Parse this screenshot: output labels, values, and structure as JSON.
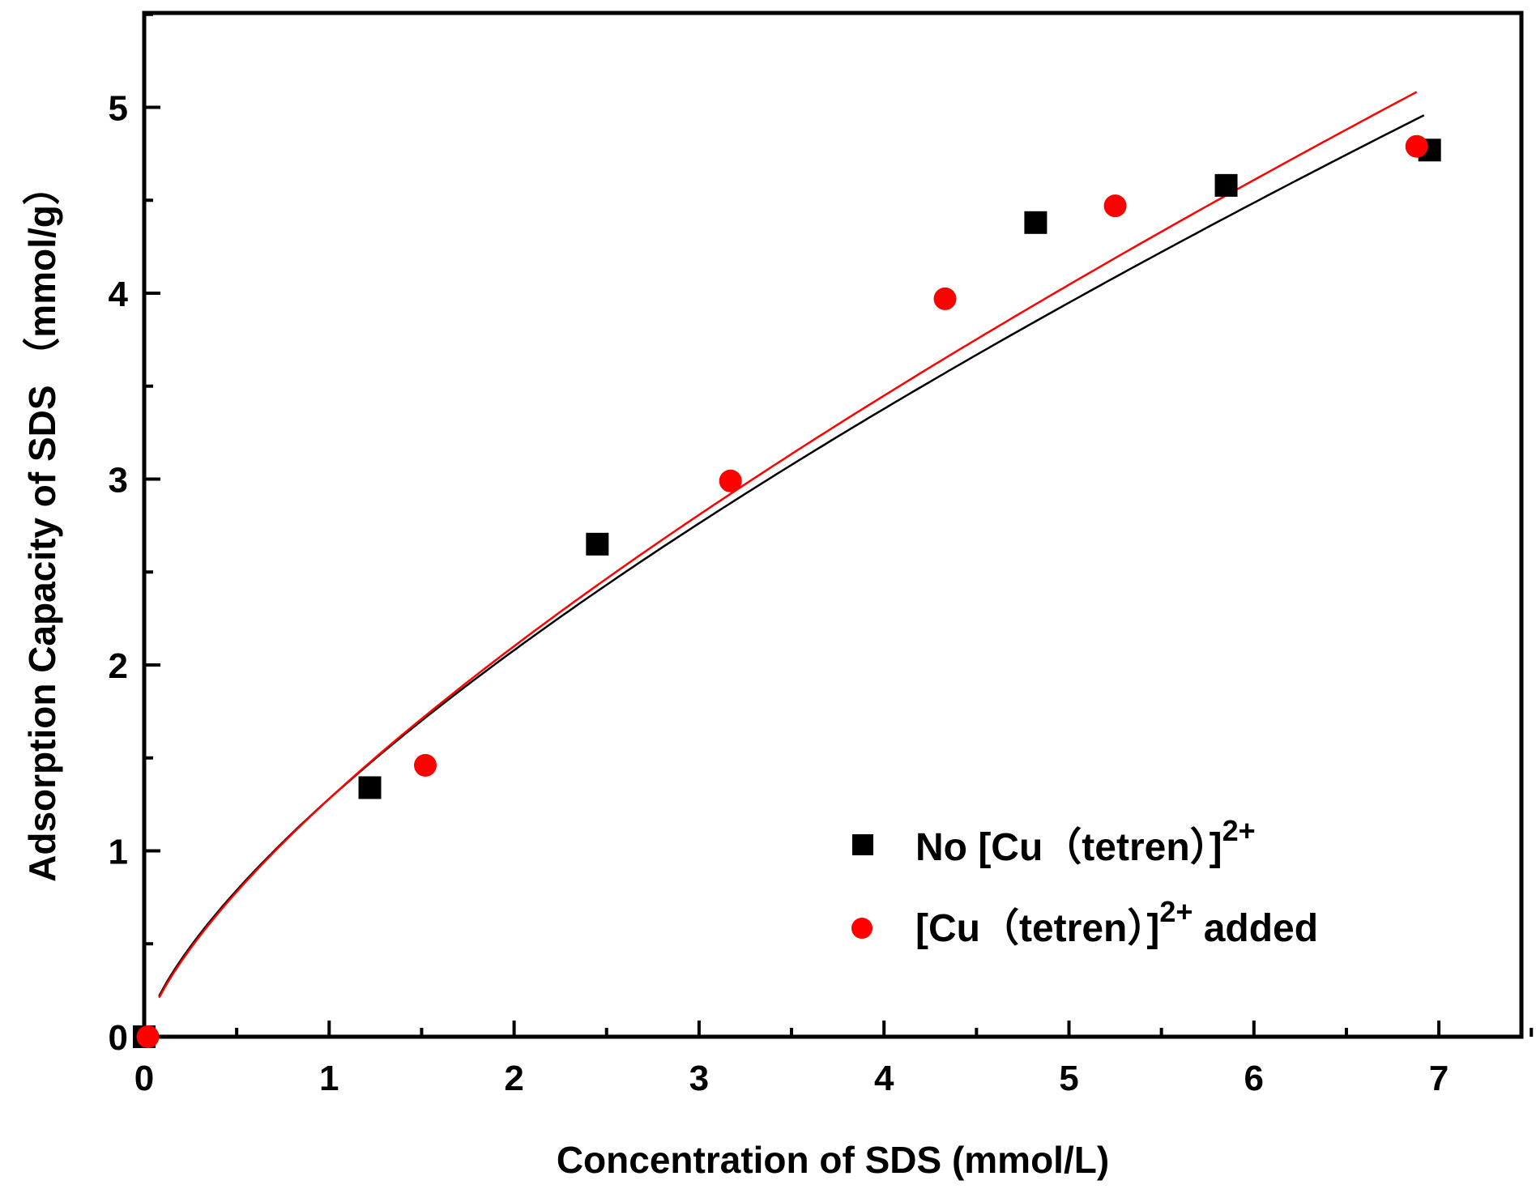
{
  "chart_data": {
    "type": "scatter",
    "title": "",
    "xlabel": "Concentration of SDS (mmol/L)",
    "ylabel": "Adsorption Capacity of SDS （mmol/g）",
    "xlim": [
      0,
      7.5
    ],
    "ylim": [
      0,
      5.5
    ],
    "xticks": [
      0,
      1,
      2,
      3,
      4,
      5,
      6,
      7
    ],
    "yticks": [
      0,
      1,
      2,
      3,
      4,
      5
    ],
    "xtick_labels": [
      "0",
      "1",
      "2",
      "3",
      "4",
      "5",
      "6",
      "7"
    ],
    "ytick_labels": [
      "0",
      "1",
      "2",
      "3",
      "4",
      "5"
    ],
    "legend_position": "bottom-right",
    "series": [
      {
        "name": "No [Cu（tetren）]2+",
        "legend_main": "No [Cu（tetren）]",
        "legend_sup": "2+",
        "legend_suffix": "",
        "marker": "square",
        "color": "#000000",
        "points": [
          [
            0.0,
            0.0
          ],
          [
            1.22,
            1.34
          ],
          [
            2.45,
            2.65
          ],
          [
            4.82,
            4.38
          ],
          [
            5.85,
            4.58
          ],
          [
            6.95,
            4.77
          ]
        ],
        "fit": {
          "model": "power",
          "a": 1.28,
          "b": 0.7,
          "x_range": [
            0.08,
            6.92
          ]
        }
      },
      {
        "name": "[Cu（tetren）]2+ added",
        "legend_main": "[Cu（tetren）]",
        "legend_sup": "2+",
        "legend_suffix": " added",
        "marker": "circle",
        "color": "#ff0000",
        "points": [
          [
            0.02,
            0.0
          ],
          [
            1.52,
            1.46
          ],
          [
            3.17,
            2.99
          ],
          [
            4.33,
            3.97
          ],
          [
            5.25,
            4.47
          ],
          [
            6.88,
            4.79
          ]
        ],
        "fit": {
          "model": "power",
          "a": 1.28,
          "b": 0.715,
          "x_range": [
            0.08,
            6.88
          ]
        }
      }
    ]
  }
}
